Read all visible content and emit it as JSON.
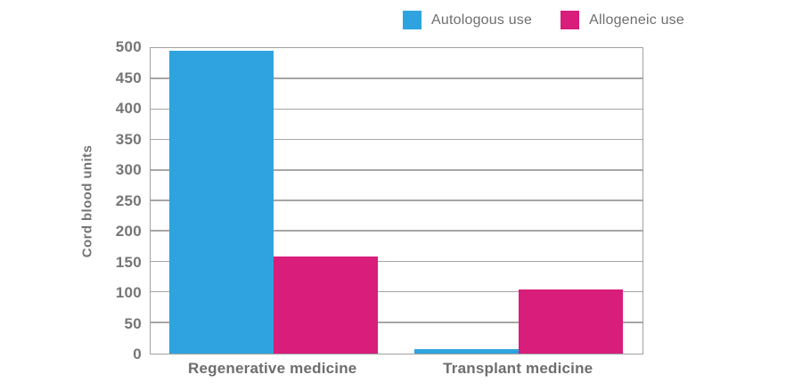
{
  "chart_data": {
    "type": "bar",
    "title": "",
    "categories": [
      "Regenerative medicine",
      "Transplant medicine"
    ],
    "series": [
      {
        "name": "Autologous use",
        "color": "#2FA3DF",
        "values": [
          497,
          7
        ]
      },
      {
        "name": "Allogeneic use",
        "color": "#D81D7B",
        "values": [
          160,
          105
        ]
      }
    ],
    "xlabel": "",
    "ylabel": "Cord blood units",
    "ylim": [
      0,
      500
    ],
    "ytick_step": 50,
    "grid": true,
    "legend_position": "top-center",
    "colors": {
      "axis_text": "#757575",
      "category_text": "#6d6d6d",
      "legend_text": "#6e6e6e",
      "gridline": "#a6a6a6",
      "plot_border": "#a0a0a0",
      "background": "#ffffff"
    }
  }
}
